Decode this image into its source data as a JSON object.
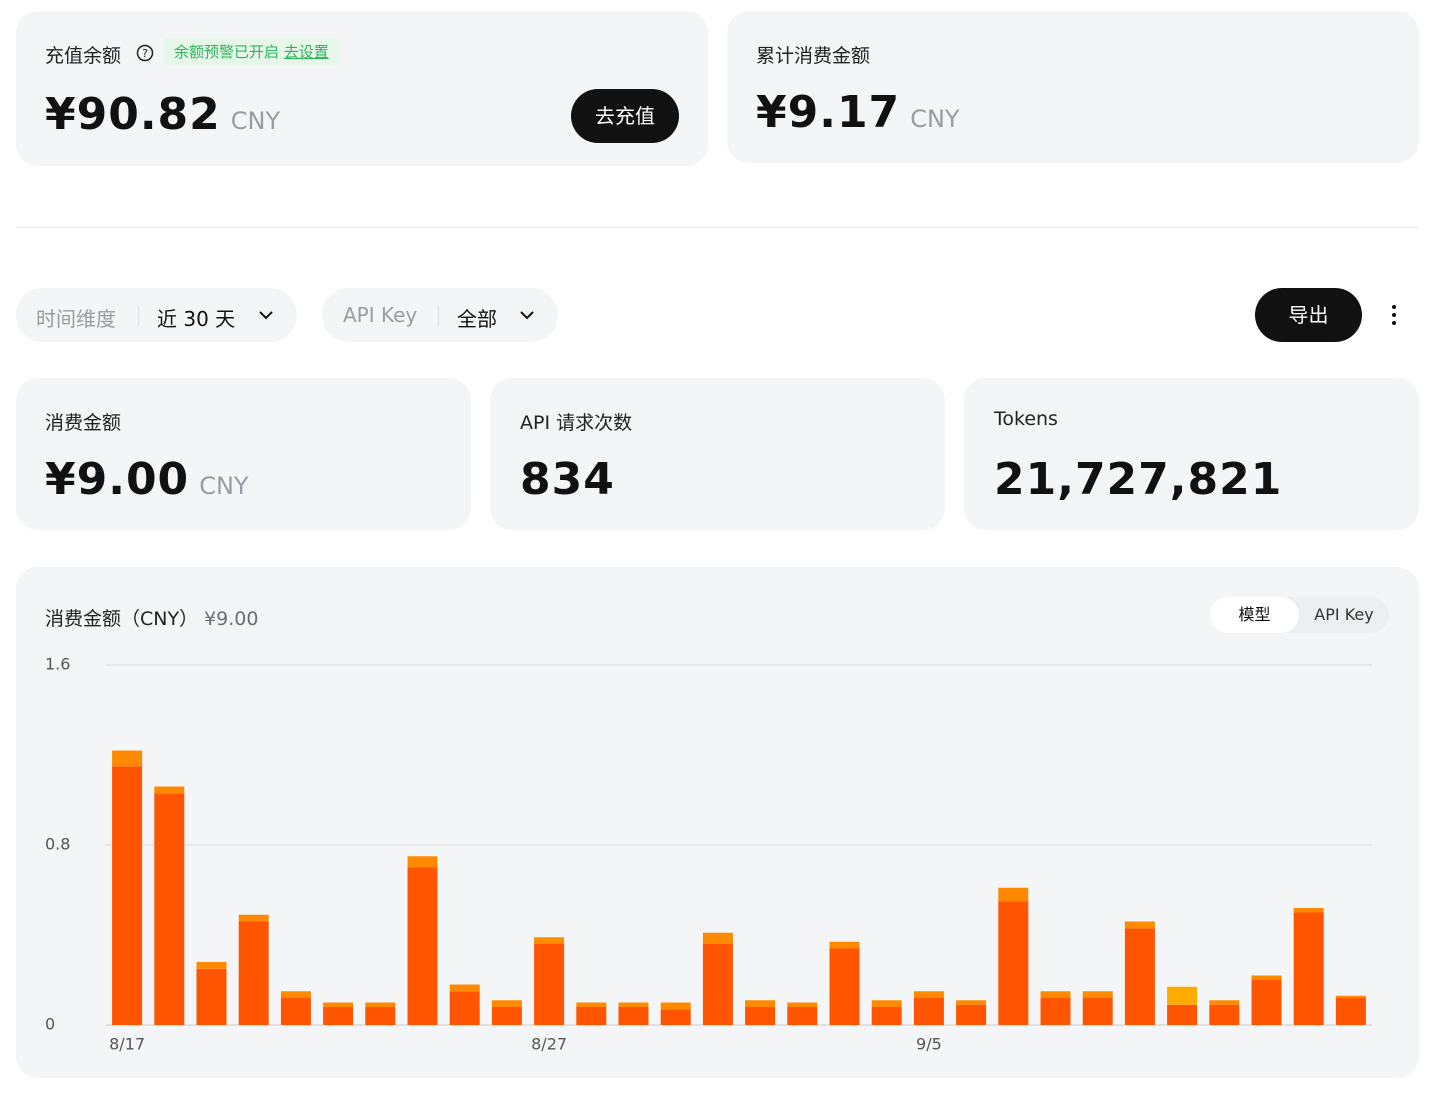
{
  "balance_card": {
    "label": "充值余额",
    "alert": "余额预警已开启",
    "alert_link": "去设置",
    "amount": "¥90.82",
    "currency": "CNY",
    "button": "去充值"
  },
  "total_card": {
    "label": "累计消费金额",
    "amount": "¥9.17",
    "currency": "CNY"
  },
  "filters": [
    {
      "label": "时间维度",
      "value": "近 30 天"
    },
    {
      "label": "API Key",
      "value": "全部"
    }
  ],
  "export_button": "导出",
  "stats": [
    {
      "label": "消费金额",
      "value": "¥9.00",
      "unit": "CNY"
    },
    {
      "label": "API 请求次数",
      "value": "834"
    },
    {
      "label": "Tokens",
      "value": "21,727,821"
    }
  ],
  "chart_data": {
    "type": "bar",
    "stacked": true,
    "title": "消费金额（CNY）",
    "subtitle": "¥9.00",
    "toggle": [
      "模型",
      "API Key"
    ],
    "categories": [
      "8/17",
      null,
      null,
      null,
      null,
      null,
      null,
      null,
      null,
      null,
      "8/27",
      null,
      null,
      null,
      null,
      null,
      null,
      null,
      null,
      "9/5",
      null,
      null,
      null,
      null,
      null,
      null,
      null,
      null,
      null,
      null
    ],
    "series": [
      {
        "color": "#ff5500",
        "values": [
          1.15,
          1.03,
          0.25,
          0.46,
          0.12,
          0.08,
          0.08,
          0.7,
          0.15,
          0.08,
          0.36,
          0.08,
          0.08,
          0.07,
          0.36,
          0.08,
          0.08,
          0.34,
          0.08,
          0.12,
          0.09,
          0.55,
          0.12,
          0.12,
          0.43,
          0.09,
          0.09,
          0.2,
          0.5,
          0.12
        ]
      },
      {
        "color": "#ff8a00",
        "values": [
          0.07,
          0.03,
          0.03,
          0.03,
          0.03,
          0.02,
          0.02,
          0.05,
          0.03,
          0.03,
          0.03,
          0.02,
          0.02,
          0.03,
          0.05,
          0.03,
          0.02,
          0.03,
          0.03,
          0.03,
          0.02,
          0.06,
          0.03,
          0.03,
          0.03,
          0,
          0.02,
          0.02,
          0.02,
          0.01
        ]
      },
      {
        "color": "#ffab00",
        "values": [
          0,
          0,
          0,
          0,
          0,
          0,
          0,
          0,
          0,
          0,
          0,
          0,
          0,
          0,
          0,
          0,
          0,
          0,
          0,
          0,
          0,
          0,
          0,
          0,
          0,
          0.08,
          0,
          0,
          0,
          0
        ]
      }
    ],
    "ylim": [
      0,
      1.6
    ],
    "yticks": [
      0,
      0.8,
      1.6
    ],
    "grid": true
  }
}
